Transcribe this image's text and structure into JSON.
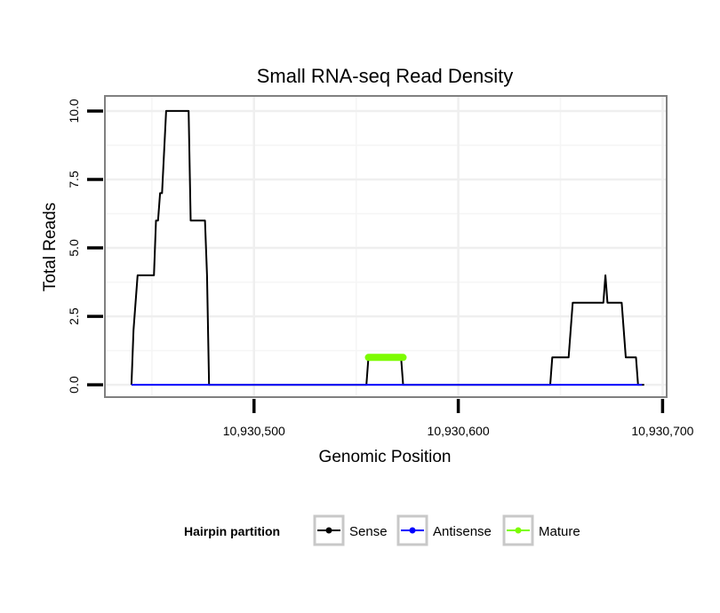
{
  "chart_data": {
    "type": "line",
    "title": "Small RNA-seq Read Density",
    "xlabel": "Genomic Position",
    "ylabel": "Total Reads",
    "xlim": [
      10930427,
      10930702
    ],
    "ylim": [
      -0.45,
      10.55
    ],
    "x_ticks": [
      10930500,
      10930600,
      10930700
    ],
    "x_tick_labels": [
      "10,930,500",
      "10,930,600",
      "10,930,700"
    ],
    "y_ticks": [
      0,
      2.5,
      5,
      7.5,
      10
    ],
    "y_tick_labels": [
      "0.0",
      "2.5",
      "5.0",
      "7.5",
      "10.0"
    ],
    "grid": true,
    "legend": {
      "title": "Hairpin partition",
      "position": "bottom",
      "entries": [
        {
          "label": "Sense",
          "color": "#000000"
        },
        {
          "label": "Antisense",
          "color": "#0000ff"
        },
        {
          "label": "Mature",
          "color": "#7cfc00"
        }
      ]
    },
    "series": [
      {
        "name": "Sense",
        "color": "#000000",
        "x": [
          10930440,
          10930441,
          10930443,
          10930451,
          10930452,
          10930453,
          10930454,
          10930455,
          10930457,
          10930468,
          10930469,
          10930476,
          10930477,
          10930478,
          10930555,
          10930556,
          10930572,
          10930573,
          10930645,
          10930646,
          10930654,
          10930655,
          10930656,
          10930671,
          10930672,
          10930673,
          10930674,
          10930680,
          10930681,
          10930682,
          10930687,
          10930688,
          10930691
        ],
        "values": [
          0,
          2,
          4,
          4,
          6,
          6,
          7,
          7,
          10,
          10,
          6,
          6,
          4,
          0,
          0,
          1,
          1,
          0,
          0,
          1,
          1,
          2,
          3,
          3,
          4,
          3,
          3,
          3,
          2,
          1,
          1,
          0,
          0
        ]
      },
      {
        "name": "Antisense",
        "color": "#0000ff",
        "x": [
          10930440,
          10930690
        ],
        "values": [
          0,
          0
        ]
      },
      {
        "name": "Mature",
        "color": "#7cfc00",
        "x": [
          10930556,
          10930573
        ],
        "values": [
          1,
          1
        ]
      }
    ]
  }
}
